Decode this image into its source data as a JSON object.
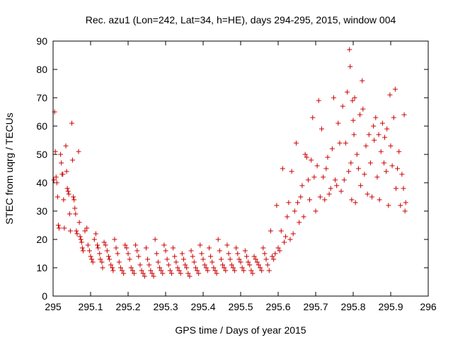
{
  "chart_data": {
    "type": "scatter",
    "title": "Rec. azu1 (Lon=242, Lat=34, h=HE), days 294-295, 2015, window 004",
    "xlabel": "GPS time / Days of year 2015",
    "ylabel": "STEC from uqrg / TECUs",
    "xlim": [
      295,
      296
    ],
    "ylim": [
      0,
      90
    ],
    "x_ticks": [
      "295",
      "295.1",
      "295.2",
      "295.3",
      "295.4",
      "295.5",
      "295.6",
      "295.7",
      "295.8",
      "295.9",
      "296"
    ],
    "y_ticks": [
      "0",
      "10",
      "20",
      "30",
      "40",
      "50",
      "60",
      "70",
      "80",
      "90"
    ],
    "grid": false,
    "marker": "+",
    "color": "#cc0000",
    "series": [
      {
        "points": [
          [
            295.002,
            41
          ],
          [
            295.004,
            65
          ],
          [
            295.006,
            51
          ],
          [
            295.008,
            42
          ],
          [
            295.01,
            40
          ],
          [
            295.012,
            35
          ],
          [
            295.014,
            25
          ],
          [
            295.016,
            24
          ],
          [
            295.02,
            50
          ],
          [
            295.022,
            47
          ],
          [
            295.024,
            43
          ],
          [
            295.026,
            43
          ],
          [
            295.028,
            34
          ],
          [
            295.03,
            24
          ],
          [
            295.034,
            53
          ],
          [
            295.036,
            44
          ],
          [
            295.038,
            38
          ],
          [
            295.04,
            37
          ],
          [
            295.042,
            36
          ],
          [
            295.044,
            29
          ],
          [
            295.046,
            23
          ],
          [
            295.05,
            61
          ],
          [
            295.052,
            48
          ],
          [
            295.054,
            35
          ],
          [
            295.056,
            34
          ],
          [
            295.058,
            31
          ],
          [
            295.06,
            29
          ],
          [
            295.062,
            23
          ],
          [
            295.064,
            22
          ],
          [
            295.068,
            51
          ],
          [
            295.07,
            26
          ],
          [
            295.072,
            21
          ],
          [
            295.074,
            20
          ],
          [
            295.076,
            19
          ],
          [
            295.078,
            17
          ],
          [
            295.08,
            16
          ],
          [
            295.085,
            23
          ],
          [
            295.09,
            24
          ],
          [
            295.093,
            18
          ],
          [
            295.097,
            16
          ],
          [
            295.1,
            14
          ],
          [
            295.103,
            13
          ],
          [
            295.106,
            12
          ],
          [
            295.11,
            20
          ],
          [
            295.114,
            22
          ],
          [
            295.118,
            18
          ],
          [
            295.12,
            17
          ],
          [
            295.124,
            15
          ],
          [
            295.126,
            13
          ],
          [
            295.13,
            12
          ],
          [
            295.132,
            10
          ],
          [
            295.136,
            19
          ],
          [
            295.14,
            18
          ],
          [
            295.144,
            16
          ],
          [
            295.148,
            14
          ],
          [
            295.15,
            13
          ],
          [
            295.154,
            11
          ],
          [
            295.158,
            10
          ],
          [
            295.16,
            9
          ],
          [
            295.164,
            20
          ],
          [
            295.168,
            17
          ],
          [
            295.172,
            15
          ],
          [
            295.176,
            12
          ],
          [
            295.18,
            10
          ],
          [
            295.184,
            9
          ],
          [
            295.188,
            8
          ],
          [
            295.192,
            18
          ],
          [
            295.196,
            17
          ],
          [
            295.2,
            15
          ],
          [
            295.204,
            13
          ],
          [
            295.208,
            10
          ],
          [
            295.212,
            9
          ],
          [
            295.216,
            8
          ],
          [
            295.22,
            18
          ],
          [
            295.224,
            16
          ],
          [
            295.228,
            14
          ],
          [
            295.232,
            11
          ],
          [
            295.236,
            9
          ],
          [
            295.24,
            8
          ],
          [
            295.244,
            7
          ],
          [
            295.248,
            17
          ],
          [
            295.252,
            13
          ],
          [
            295.256,
            11
          ],
          [
            295.26,
            9
          ],
          [
            295.264,
            8
          ],
          [
            295.268,
            7
          ],
          [
            295.272,
            20
          ],
          [
            295.276,
            15
          ],
          [
            295.28,
            12
          ],
          [
            295.284,
            10
          ],
          [
            295.288,
            9
          ],
          [
            295.292,
            8
          ],
          [
            295.296,
            18
          ],
          [
            295.3,
            16
          ],
          [
            295.304,
            13
          ],
          [
            295.308,
            11
          ],
          [
            295.312,
            9
          ],
          [
            295.316,
            8
          ],
          [
            295.32,
            17
          ],
          [
            295.324,
            14
          ],
          [
            295.328,
            12
          ],
          [
            295.332,
            10
          ],
          [
            295.336,
            9
          ],
          [
            295.34,
            8
          ],
          [
            295.344,
            15
          ],
          [
            295.348,
            13
          ],
          [
            295.352,
            11
          ],
          [
            295.356,
            10
          ],
          [
            295.36,
            8
          ],
          [
            295.364,
            7
          ],
          [
            295.368,
            16
          ],
          [
            295.372,
            14
          ],
          [
            295.376,
            12
          ],
          [
            295.38,
            10
          ],
          [
            295.384,
            9
          ],
          [
            295.388,
            8
          ],
          [
            295.392,
            18
          ],
          [
            295.396,
            15
          ],
          [
            295.4,
            13
          ],
          [
            295.404,
            11
          ],
          [
            295.408,
            10
          ],
          [
            295.412,
            9
          ],
          [
            295.416,
            17
          ],
          [
            295.42,
            14
          ],
          [
            295.424,
            12
          ],
          [
            295.428,
            10
          ],
          [
            295.432,
            9
          ],
          [
            295.436,
            8
          ],
          [
            295.44,
            20
          ],
          [
            295.444,
            16
          ],
          [
            295.448,
            13
          ],
          [
            295.452,
            11
          ],
          [
            295.456,
            10
          ],
          [
            295.46,
            9
          ],
          [
            295.464,
            18
          ],
          [
            295.468,
            15
          ],
          [
            295.472,
            13
          ],
          [
            295.476,
            11
          ],
          [
            295.48,
            10
          ],
          [
            295.484,
            9
          ],
          [
            295.488,
            17
          ],
          [
            295.492,
            15
          ],
          [
            295.496,
            13
          ],
          [
            295.5,
            12
          ],
          [
            295.504,
            10
          ],
          [
            295.508,
            9
          ],
          [
            295.512,
            16
          ],
          [
            295.516,
            14
          ],
          [
            295.52,
            12
          ],
          [
            295.524,
            11
          ],
          [
            295.528,
            9
          ],
          [
            295.532,
            8
          ],
          [
            295.536,
            14
          ],
          [
            295.54,
            13
          ],
          [
            295.544,
            12
          ],
          [
            295.548,
            11
          ],
          [
            295.552,
            10
          ],
          [
            295.556,
            9
          ],
          [
            295.56,
            17
          ],
          [
            295.564,
            15
          ],
          [
            295.568,
            13
          ],
          [
            295.572,
            11
          ],
          [
            295.576,
            9
          ],
          [
            295.58,
            23
          ],
          [
            295.584,
            14
          ],
          [
            295.588,
            13
          ],
          [
            295.592,
            15
          ],
          [
            295.596,
            32
          ],
          [
            295.6,
            17
          ],
          [
            295.604,
            16
          ],
          [
            295.608,
            23
          ],
          [
            295.612,
            45
          ],
          [
            295.616,
            19
          ],
          [
            295.62,
            21
          ],
          [
            295.624,
            28
          ],
          [
            295.628,
            33
          ],
          [
            295.632,
            20
          ],
          [
            295.636,
            44
          ],
          [
            295.64,
            22
          ],
          [
            295.644,
            30
          ],
          [
            295.648,
            54
          ],
          [
            295.652,
            33
          ],
          [
            295.656,
            26
          ],
          [
            295.66,
            35
          ],
          [
            295.664,
            39
          ],
          [
            295.668,
            28
          ],
          [
            295.672,
            50
          ],
          [
            295.676,
            49
          ],
          [
            295.68,
            41
          ],
          [
            295.684,
            34
          ],
          [
            295.688,
            48
          ],
          [
            295.692,
            63
          ],
          [
            295.696,
            42
          ],
          [
            295.7,
            30
          ],
          [
            295.704,
            46
          ],
          [
            295.708,
            69
          ],
          [
            295.712,
            35
          ],
          [
            295.716,
            59
          ],
          [
            295.72,
            42
          ],
          [
            295.724,
            34
          ],
          [
            295.728,
            45
          ],
          [
            295.732,
            49
          ],
          [
            295.736,
            36
          ],
          [
            295.74,
            38
          ],
          [
            295.744,
            52
          ],
          [
            295.748,
            70
          ],
          [
            295.752,
            41
          ],
          [
            295.756,
            39
          ],
          [
            295.76,
            61
          ],
          [
            295.764,
            54
          ],
          [
            295.768,
            37
          ],
          [
            295.772,
            67
          ],
          [
            295.776,
            41
          ],
          [
            295.78,
            54
          ],
          [
            295.784,
            72
          ],
          [
            295.788,
            44
          ],
          [
            295.79,
            87
          ],
          [
            295.792,
            81
          ],
          [
            295.794,
            47
          ],
          [
            295.796,
            34
          ],
          [
            295.798,
            69
          ],
          [
            295.8,
            62
          ],
          [
            295.802,
            57
          ],
          [
            295.804,
            70
          ],
          [
            295.806,
            33
          ],
          [
            295.81,
            50
          ],
          [
            295.814,
            45
          ],
          [
            295.818,
            64
          ],
          [
            295.82,
            39
          ],
          [
            295.824,
            76
          ],
          [
            295.826,
            66
          ],
          [
            295.83,
            43
          ],
          [
            295.834,
            53
          ],
          [
            295.838,
            36
          ],
          [
            295.842,
            57
          ],
          [
            295.846,
            47
          ],
          [
            295.85,
            35
          ],
          [
            295.854,
            60
          ],
          [
            295.856,
            55
          ],
          [
            295.86,
            63
          ],
          [
            295.864,
            42
          ],
          [
            295.868,
            57
          ],
          [
            295.87,
            34
          ],
          [
            295.874,
            51
          ],
          [
            295.878,
            61
          ],
          [
            295.882,
            47
          ],
          [
            295.884,
            56
          ],
          [
            295.888,
            44
          ],
          [
            295.89,
            59
          ],
          [
            295.894,
            32
          ],
          [
            295.898,
            71
          ],
          [
            295.9,
            53
          ],
          [
            295.904,
            46
          ],
          [
            295.908,
            63
          ],
          [
            295.912,
            73
          ],
          [
            295.914,
            38
          ],
          [
            295.918,
            45
          ],
          [
            295.922,
            51
          ],
          [
            295.926,
            32
          ],
          [
            295.93,
            43
          ],
          [
            295.934,
            38
          ],
          [
            295.936,
            64
          ],
          [
            295.938,
            30
          ],
          [
            295.94,
            33
          ]
        ]
      }
    ]
  }
}
